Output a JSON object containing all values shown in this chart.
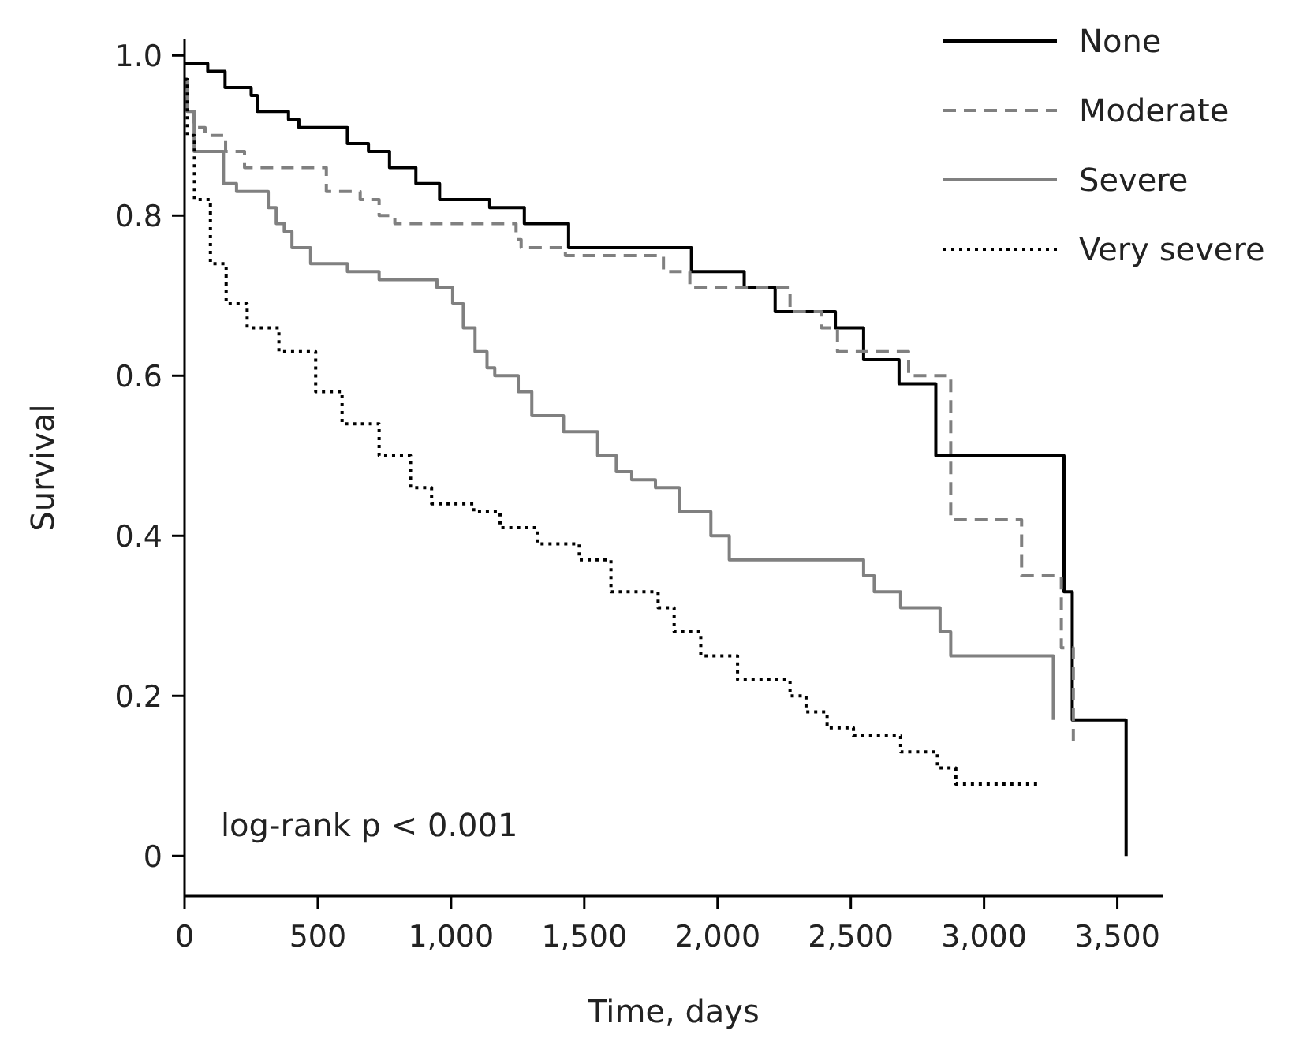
{
  "chart_data": {
    "type": "step",
    "xlabel": "Time, days",
    "ylabel": "Survival",
    "xlim": [
      0,
      3670
    ],
    "ylim": [
      -0.05,
      1.02
    ],
    "xticks": [
      0,
      500,
      {
        "value": 1000,
        "label": "1,000"
      },
      {
        "value": 1500,
        "label": "1,500"
      },
      {
        "value": 2000,
        "label": "2,000"
      },
      {
        "value": 2500,
        "label": "2,500"
      },
      {
        "value": 3000,
        "label": "3,000"
      },
      {
        "value": 3500,
        "label": "3,500"
      }
    ],
    "yticks": [
      0,
      0.2,
      0.4,
      0.6,
      0.8,
      {
        "value": 1,
        "label": "1.0"
      }
    ],
    "grid": false,
    "legend": "top right",
    "annotations": [
      "log-rank p < 0.001"
    ],
    "series": [
      {
        "name": "None",
        "color": "#000000",
        "line_style": "solid",
        "x": [
          0,
          87,
          152,
          250,
          273,
          390,
          429,
          611,
          690,
          769,
          868,
          957,
          1145,
          1275,
          1441,
          1902,
          2100,
          2216,
          2442,
          2548,
          2681,
          2819,
          3300,
          3331,
          3533
        ],
        "values": [
          0.99,
          0.98,
          0.96,
          0.95,
          0.93,
          0.92,
          0.91,
          0.89,
          0.88,
          0.86,
          0.84,
          0.82,
          0.81,
          0.79,
          0.76,
          0.73,
          0.71,
          0.68,
          0.66,
          0.62,
          0.59,
          0.5,
          0.33,
          0.17,
          0
        ]
      },
      {
        "name": "Moderate",
        "color": "#808080",
        "line_style": "dashed",
        "x": [
          0,
          10,
          36,
          77,
          154,
          225,
          532,
          659,
          730,
          789,
          1244,
          1263,
          1429,
          1797,
          1896,
          2272,
          2390,
          2450,
          2717,
          2875,
          3141,
          3290,
          3335
        ],
        "values": [
          0.97,
          0.93,
          0.91,
          0.9,
          0.88,
          0.86,
          0.83,
          0.82,
          0.8,
          0.79,
          0.77,
          0.76,
          0.75,
          0.73,
          0.71,
          0.68,
          0.66,
          0.63,
          0.6,
          0.42,
          0.35,
          0.26,
          0.14
        ]
      },
      {
        "name": "Severe",
        "color": "#808080",
        "line_style": "solid",
        "x": [
          0,
          10,
          36,
          146,
          195,
          314,
          344,
          374,
          403,
          473,
          611,
          690,
          730,
          947,
          1006,
          1046,
          1090,
          1135,
          1164,
          1252,
          1303,
          1422,
          1550,
          1620,
          1678,
          1767,
          1856,
          1975,
          2044,
          2548,
          2588,
          2687,
          2835,
          2875,
          3260
        ],
        "values": [
          0.97,
          0.93,
          0.88,
          0.84,
          0.83,
          0.81,
          0.79,
          0.78,
          0.76,
          0.74,
          0.73,
          0.73,
          0.72,
          0.71,
          0.69,
          0.66,
          0.63,
          0.61,
          0.6,
          0.58,
          0.55,
          0.53,
          0.5,
          0.48,
          0.47,
          0.46,
          0.43,
          0.4,
          0.37,
          0.35,
          0.33,
          0.31,
          0.28,
          0.25,
          0.17
        ]
      },
      {
        "name": "Very severe",
        "color": "#000000",
        "line_style": "dotted",
        "x": [
          0,
          10,
          37,
          97,
          156,
          235,
          354,
          492,
          591,
          730,
          848,
          927,
          1085,
          1184,
          1323,
          1481,
          1600,
          1777,
          1837,
          1937,
          2075,
          2272,
          2332,
          2411,
          2510,
          2687,
          2825,
          2894,
          3210
        ],
        "values": [
          0.97,
          0.9,
          0.82,
          0.74,
          0.69,
          0.66,
          0.63,
          0.58,
          0.54,
          0.5,
          0.46,
          0.44,
          0.43,
          0.41,
          0.39,
          0.37,
          0.33,
          0.31,
          0.28,
          0.25,
          0.22,
          0.2,
          0.18,
          0.16,
          0.15,
          0.13,
          0.11,
          0.09,
          0.09
        ]
      }
    ]
  }
}
